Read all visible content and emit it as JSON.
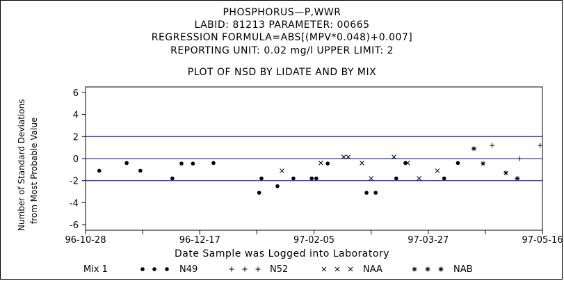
{
  "header": {
    "title": "PHOSPHORUS—P,WWR",
    "line2": "LABID: 81213 PARAMETER: 00665",
    "line3": "REGRESSION FORMULA=ABS[(MPV*0.048)+0.007]",
    "line4": "REPORTING UNIT: 0.02 mg/l   UPPER LIMIT: 2",
    "line5": "PLOT OF NSD BY LIDATE AND BY MIX"
  },
  "chart_data": {
    "type": "scatter",
    "xlabel": "Date Sample was Logged into Laboratory",
    "ylabel_line1": "Number of Standard Deviations",
    "ylabel_line2": "from Most Probable Value",
    "x_ticks": [
      "96-10-28",
      "96-12-17",
      "97-02-05",
      "97-03-27",
      "97-05-16"
    ],
    "x_range": [
      "1996-10-28",
      "1997-05-16"
    ],
    "y_ticks": [
      6,
      4,
      2,
      0,
      -2,
      -4,
      -6
    ],
    "ylim": [
      -6.5,
      6.5
    ],
    "reference_lines": [
      2,
      0,
      -2
    ],
    "legend_title": "Mix 1",
    "legend_placement": "bottom",
    "series": [
      {
        "name": "N49",
        "symbol": "dot",
        "points": [
          [
            "1996-11-03",
            -1.1
          ],
          [
            "1996-11-15",
            -0.4
          ],
          [
            "1996-11-21",
            -1.1
          ],
          [
            "1996-12-05",
            -1.8
          ],
          [
            "1996-12-09",
            -0.45
          ],
          [
            "1996-12-14",
            -0.45
          ],
          [
            "1996-12-23",
            -0.4
          ],
          [
            "1997-01-12",
            -3.1
          ],
          [
            "1997-01-13",
            -1.8
          ],
          [
            "1997-01-20",
            -2.5
          ],
          [
            "1997-01-27",
            -1.8
          ],
          [
            "1997-02-04",
            -1.8
          ],
          [
            "1997-02-06",
            -1.8
          ],
          [
            "1997-02-11",
            -0.45
          ],
          [
            "1997-02-28",
            -3.1
          ],
          [
            "1997-03-04",
            -3.1
          ],
          [
            "1997-03-13",
            -1.8
          ],
          [
            "1997-03-17",
            -0.4
          ],
          [
            "1997-04-03",
            -1.8
          ],
          [
            "1997-04-09",
            -0.4
          ]
        ]
      },
      {
        "name": "N52",
        "symbol": "plus",
        "points": [
          [
            "1997-04-24",
            1.2
          ],
          [
            "1997-05-06",
            0.0
          ],
          [
            "1997-05-15",
            1.2
          ]
        ]
      },
      {
        "name": "NAA",
        "symbol": "cross",
        "points": [
          [
            "1997-01-22",
            -1.1
          ],
          [
            "1997-02-08",
            -0.4
          ],
          [
            "1997-02-18",
            0.15
          ],
          [
            "1997-02-20",
            0.15
          ],
          [
            "1997-02-26",
            -0.4
          ],
          [
            "1997-03-02",
            -1.8
          ],
          [
            "1997-03-12",
            0.15
          ],
          [
            "1997-03-18",
            -0.4
          ],
          [
            "1997-03-23",
            -1.8
          ],
          [
            "1997-03-31",
            -1.1
          ]
        ]
      },
      {
        "name": "NAB",
        "symbol": "star",
        "points": [
          [
            "1997-04-16",
            0.9
          ],
          [
            "1997-04-20",
            -0.45
          ],
          [
            "1997-04-30",
            -1.3
          ],
          [
            "1997-05-05",
            -1.8
          ]
        ]
      }
    ]
  }
}
